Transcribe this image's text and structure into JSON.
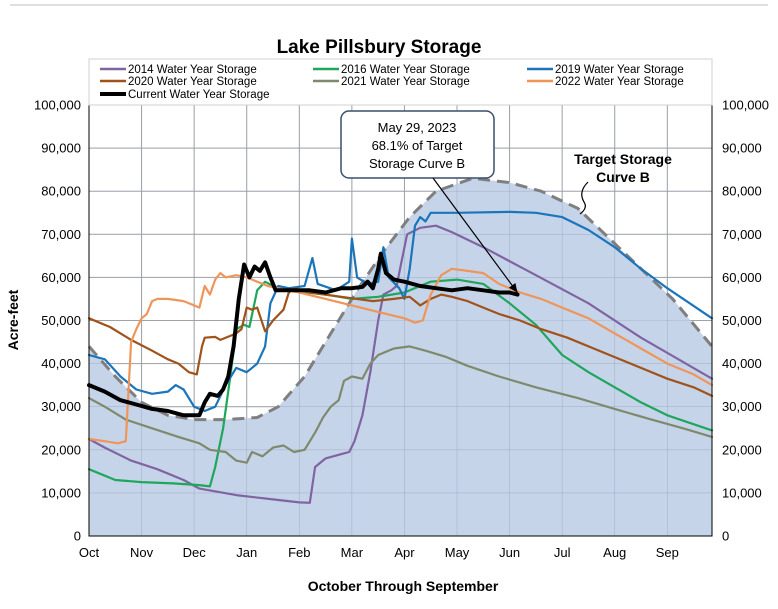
{
  "chart_data": {
    "type": "line",
    "title": "Lake Pillsbury Storage",
    "xlabel": "October Through September",
    "ylabel": "Acre-feet",
    "ylim": [
      0,
      100000
    ],
    "xlim": [
      0,
      11.85
    ],
    "categories": [
      "Oct",
      "Nov",
      "Dec",
      "Jan",
      "Feb",
      "Mar",
      "Apr",
      "May",
      "Jun",
      "Jul",
      "Aug",
      "Sep"
    ],
    "y_ticks": [
      "0",
      "10,000",
      "20,000",
      "30,000",
      "40,000",
      "50,000",
      "60,000",
      "70,000",
      "80,000",
      "90,000",
      "100,000"
    ],
    "grid": true,
    "target_curve": {
      "name": "Target Storage Curve B",
      "label_line1": "Target Storage",
      "label_line2": "Curve B",
      "color": "#c5d4e9",
      "line_color": "#7f7f7f",
      "points": [
        [
          0,
          44000
        ],
        [
          0.5,
          37000
        ],
        [
          1.0,
          31000
        ],
        [
          1.5,
          28000
        ],
        [
          2.0,
          27000
        ],
        [
          2.6,
          27000
        ],
        [
          3.2,
          27500
        ],
        [
          3.6,
          30000
        ],
        [
          4.1,
          37000
        ],
        [
          4.6,
          47000
        ],
        [
          5.1,
          57000
        ],
        [
          5.6,
          66000
        ],
        [
          6.1,
          74000
        ],
        [
          6.6,
          80000
        ],
        [
          7.3,
          83000
        ],
        [
          8.0,
          82000
        ],
        [
          8.6,
          80000
        ],
        [
          9.3,
          76000
        ],
        [
          9.9,
          69000
        ],
        [
          10.5,
          62000
        ],
        [
          11.1,
          55000
        ],
        [
          11.85,
          44000
        ]
      ]
    },
    "series": [
      {
        "name": "2014 Water Year Storage",
        "color": "#8064a2",
        "points": [
          [
            0,
            22500
          ],
          [
            0.3,
            20500
          ],
          [
            0.8,
            17500
          ],
          [
            1.3,
            15500
          ],
          [
            1.8,
            13000
          ],
          [
            2.1,
            11000
          ],
          [
            2.8,
            9500
          ],
          [
            3.5,
            8500
          ],
          [
            4.0,
            7800
          ],
          [
            4.2,
            7700
          ],
          [
            4.3,
            16000
          ],
          [
            4.5,
            18000
          ],
          [
            4.8,
            19000
          ],
          [
            4.95,
            19500
          ],
          [
            5.05,
            22000
          ],
          [
            5.2,
            28000
          ],
          [
            5.35,
            38000
          ],
          [
            5.5,
            50000
          ],
          [
            5.6,
            56000
          ],
          [
            5.75,
            57000
          ],
          [
            5.85,
            58000
          ],
          [
            5.95,
            64000
          ],
          [
            6.05,
            70000
          ],
          [
            6.3,
            71500
          ],
          [
            6.6,
            72000
          ],
          [
            6.9,
            70500
          ],
          [
            7.5,
            67000
          ],
          [
            8.5,
            60500
          ],
          [
            9.5,
            54000
          ],
          [
            10.5,
            46000
          ],
          [
            11.85,
            36500
          ]
        ]
      },
      {
        "name": "2016 Water Year Storage",
        "color": "#1ea65b",
        "points": [
          [
            0,
            15500
          ],
          [
            0.5,
            13000
          ],
          [
            1.0,
            12500
          ],
          [
            1.6,
            12200
          ],
          [
            2.1,
            11800
          ],
          [
            2.3,
            11500
          ],
          [
            2.4,
            16000
          ],
          [
            2.55,
            25000
          ],
          [
            2.7,
            38000
          ],
          [
            2.8,
            48000
          ],
          [
            2.95,
            49000
          ],
          [
            3.05,
            48500
          ],
          [
            3.2,
            57000
          ],
          [
            3.35,
            59000
          ],
          [
            3.5,
            58000
          ],
          [
            3.8,
            57000
          ],
          [
            4.5,
            56000
          ],
          [
            5.0,
            55000
          ],
          [
            5.5,
            55500
          ],
          [
            6.0,
            56500
          ],
          [
            6.5,
            59000
          ],
          [
            7.0,
            59500
          ],
          [
            7.5,
            58500
          ],
          [
            8.0,
            54000
          ],
          [
            8.5,
            49000
          ],
          [
            9.0,
            42000
          ],
          [
            9.5,
            38000
          ],
          [
            10.0,
            34500
          ],
          [
            10.5,
            31000
          ],
          [
            11.0,
            28000
          ],
          [
            11.85,
            24500
          ]
        ]
      },
      {
        "name": "2019 Water Year Storage",
        "color": "#1b75bb",
        "points": [
          [
            0,
            42000
          ],
          [
            0.3,
            41000
          ],
          [
            0.6,
            37000
          ],
          [
            0.9,
            34000
          ],
          [
            1.2,
            33000
          ],
          [
            1.5,
            33500
          ],
          [
            1.65,
            35000
          ],
          [
            1.8,
            34000
          ],
          [
            2.0,
            30000
          ],
          [
            2.2,
            29000
          ],
          [
            2.4,
            30000
          ],
          [
            2.6,
            35000
          ],
          [
            2.8,
            39000
          ],
          [
            3.0,
            38000
          ],
          [
            3.2,
            40000
          ],
          [
            3.35,
            44000
          ],
          [
            3.45,
            54000
          ],
          [
            3.6,
            58000
          ],
          [
            3.8,
            57500
          ],
          [
            4.1,
            58000
          ],
          [
            4.25,
            64500
          ],
          [
            4.35,
            58500
          ],
          [
            4.7,
            57000
          ],
          [
            4.95,
            59000
          ],
          [
            5.0,
            69000
          ],
          [
            5.1,
            60000
          ],
          [
            5.3,
            58500
          ],
          [
            5.5,
            59000
          ],
          [
            5.6,
            67000
          ],
          [
            5.7,
            60000
          ],
          [
            5.9,
            57500
          ],
          [
            6.0,
            55000
          ],
          [
            6.1,
            62000
          ],
          [
            6.2,
            72000
          ],
          [
            6.3,
            74000
          ],
          [
            6.4,
            73000
          ],
          [
            6.5,
            75000
          ],
          [
            7.0,
            75000
          ],
          [
            8.0,
            75200
          ],
          [
            8.5,
            75000
          ],
          [
            9.0,
            74000
          ],
          [
            9.5,
            71000
          ],
          [
            10.0,
            67000
          ],
          [
            10.5,
            62000
          ],
          [
            11.0,
            57500
          ],
          [
            11.85,
            50500
          ]
        ]
      },
      {
        "name": "2020 Water Year Storage",
        "color": "#a0521b",
        "points": [
          [
            0,
            50500
          ],
          [
            0.4,
            48500
          ],
          [
            0.8,
            45500
          ],
          [
            1.2,
            43000
          ],
          [
            1.5,
            41000
          ],
          [
            1.7,
            40000
          ],
          [
            1.9,
            38000
          ],
          [
            2.05,
            37500
          ],
          [
            2.15,
            44000
          ],
          [
            2.2,
            46000
          ],
          [
            2.4,
            46200
          ],
          [
            2.5,
            45500
          ],
          [
            2.7,
            46500
          ],
          [
            2.8,
            47000
          ],
          [
            2.9,
            48000
          ],
          [
            3.0,
            53000
          ],
          [
            3.1,
            52500
          ],
          [
            3.2,
            53000
          ],
          [
            3.35,
            47500
          ],
          [
            3.5,
            50000
          ],
          [
            3.7,
            52500
          ],
          [
            3.8,
            56500
          ],
          [
            3.9,
            57500
          ],
          [
            4.2,
            56500
          ],
          [
            4.8,
            55500
          ],
          [
            5.4,
            54500
          ],
          [
            5.8,
            55000
          ],
          [
            6.1,
            55500
          ],
          [
            6.3,
            53500
          ],
          [
            6.5,
            55000
          ],
          [
            6.7,
            56000
          ],
          [
            6.9,
            55500
          ],
          [
            7.2,
            54500
          ],
          [
            7.5,
            53000
          ],
          [
            7.8,
            51500
          ],
          [
            8.2,
            50000
          ],
          [
            8.6,
            48000
          ],
          [
            9.1,
            46000
          ],
          [
            9.6,
            43500
          ],
          [
            10.0,
            41500
          ],
          [
            10.5,
            39000
          ],
          [
            11.0,
            36500
          ],
          [
            11.5,
            34500
          ],
          [
            11.85,
            32500
          ]
        ]
      },
      {
        "name": "2021 Water Year Storage",
        "color": "#7f8a6c",
        "points": [
          [
            0,
            32000
          ],
          [
            0.3,
            30000
          ],
          [
            0.7,
            27000
          ],
          [
            1.2,
            25000
          ],
          [
            1.7,
            23000
          ],
          [
            2.1,
            21500
          ],
          [
            2.3,
            20000
          ],
          [
            2.6,
            19500
          ],
          [
            2.8,
            17500
          ],
          [
            3.0,
            17000
          ],
          [
            3.1,
            19500
          ],
          [
            3.3,
            18500
          ],
          [
            3.5,
            20500
          ],
          [
            3.7,
            21000
          ],
          [
            3.9,
            19500
          ],
          [
            4.1,
            20000
          ],
          [
            4.3,
            24000
          ],
          [
            4.45,
            27500
          ],
          [
            4.6,
            30000
          ],
          [
            4.75,
            31500
          ],
          [
            4.85,
            36000
          ],
          [
            5.0,
            37000
          ],
          [
            5.2,
            36500
          ],
          [
            5.35,
            40000
          ],
          [
            5.5,
            42000
          ],
          [
            5.8,
            43500
          ],
          [
            6.1,
            44000
          ],
          [
            6.4,
            43000
          ],
          [
            6.8,
            41500
          ],
          [
            7.2,
            39500
          ],
          [
            7.8,
            37000
          ],
          [
            8.5,
            34500
          ],
          [
            9.3,
            32000
          ],
          [
            10.0,
            29500
          ],
          [
            10.7,
            27000
          ],
          [
            11.3,
            25000
          ],
          [
            11.85,
            23000
          ]
        ]
      },
      {
        "name": "2022 Water Year Storage",
        "color": "#f0955a",
        "points": [
          [
            0,
            22500
          ],
          [
            0.3,
            22000
          ],
          [
            0.55,
            21500
          ],
          [
            0.7,
            22000
          ],
          [
            0.8,
            45000
          ],
          [
            0.9,
            48000
          ],
          [
            1.0,
            50500
          ],
          [
            1.1,
            51500
          ],
          [
            1.2,
            54500
          ],
          [
            1.3,
            55000
          ],
          [
            1.5,
            55000
          ],
          [
            1.8,
            54500
          ],
          [
            2.0,
            53500
          ],
          [
            2.1,
            53000
          ],
          [
            2.2,
            58000
          ],
          [
            2.3,
            56000
          ],
          [
            2.4,
            59500
          ],
          [
            2.5,
            61000
          ],
          [
            2.6,
            60000
          ],
          [
            2.8,
            60500
          ],
          [
            3.0,
            60000
          ],
          [
            3.2,
            59000
          ],
          [
            3.4,
            58000
          ],
          [
            3.6,
            57500
          ],
          [
            4.0,
            56500
          ],
          [
            4.5,
            55000
          ],
          [
            5.0,
            53500
          ],
          [
            5.5,
            52000
          ],
          [
            6.0,
            50500
          ],
          [
            6.2,
            49500
          ],
          [
            6.35,
            50000
          ],
          [
            6.5,
            56000
          ],
          [
            6.7,
            60500
          ],
          [
            6.9,
            62000
          ],
          [
            7.2,
            61500
          ],
          [
            7.5,
            61000
          ],
          [
            7.8,
            58500
          ],
          [
            8.2,
            56500
          ],
          [
            8.6,
            55000
          ],
          [
            9.0,
            53000
          ],
          [
            9.5,
            50500
          ],
          [
            10.0,
            47000
          ],
          [
            10.5,
            43500
          ],
          [
            11.0,
            40000
          ],
          [
            11.5,
            37500
          ],
          [
            11.85,
            35000
          ]
        ]
      },
      {
        "name": "Current Water Year Storage",
        "color": "#000000",
        "width": 4,
        "points": [
          [
            0,
            35000
          ],
          [
            0.3,
            33500
          ],
          [
            0.6,
            31500
          ],
          [
            0.9,
            30500
          ],
          [
            1.2,
            29500
          ],
          [
            1.5,
            29000
          ],
          [
            1.8,
            28000
          ],
          [
            2.1,
            28000
          ],
          [
            2.2,
            31000
          ],
          [
            2.3,
            33000
          ],
          [
            2.45,
            32500
          ],
          [
            2.55,
            34000
          ],
          [
            2.65,
            37000
          ],
          [
            2.75,
            44000
          ],
          [
            2.85,
            55000
          ],
          [
            2.95,
            63000
          ],
          [
            3.05,
            60000
          ],
          [
            3.15,
            62500
          ],
          [
            3.25,
            61500
          ],
          [
            3.35,
            63500
          ],
          [
            3.45,
            60000
          ],
          [
            3.55,
            57000
          ],
          [
            3.8,
            57000
          ],
          [
            4.2,
            57000
          ],
          [
            4.5,
            56500
          ],
          [
            4.8,
            57500
          ],
          [
            5.0,
            57500
          ],
          [
            5.2,
            57800
          ],
          [
            5.3,
            59000
          ],
          [
            5.4,
            57500
          ],
          [
            5.5,
            62000
          ],
          [
            5.55,
            65500
          ],
          [
            5.65,
            61000
          ],
          [
            5.8,
            59500
          ],
          [
            6.0,
            59000
          ],
          [
            6.3,
            58000
          ],
          [
            6.6,
            57500
          ],
          [
            6.9,
            57000
          ],
          [
            7.2,
            57500
          ],
          [
            7.5,
            57000
          ],
          [
            7.8,
            56500
          ],
          [
            8.0,
            56500
          ],
          [
            8.15,
            56000
          ]
        ]
      }
    ],
    "annotation": {
      "line1": "May 29, 2023",
      "line2": "68.1% of Target",
      "line3": "Storage Curve B",
      "point": [
        8.15,
        56000
      ]
    },
    "legend_position": "top"
  }
}
